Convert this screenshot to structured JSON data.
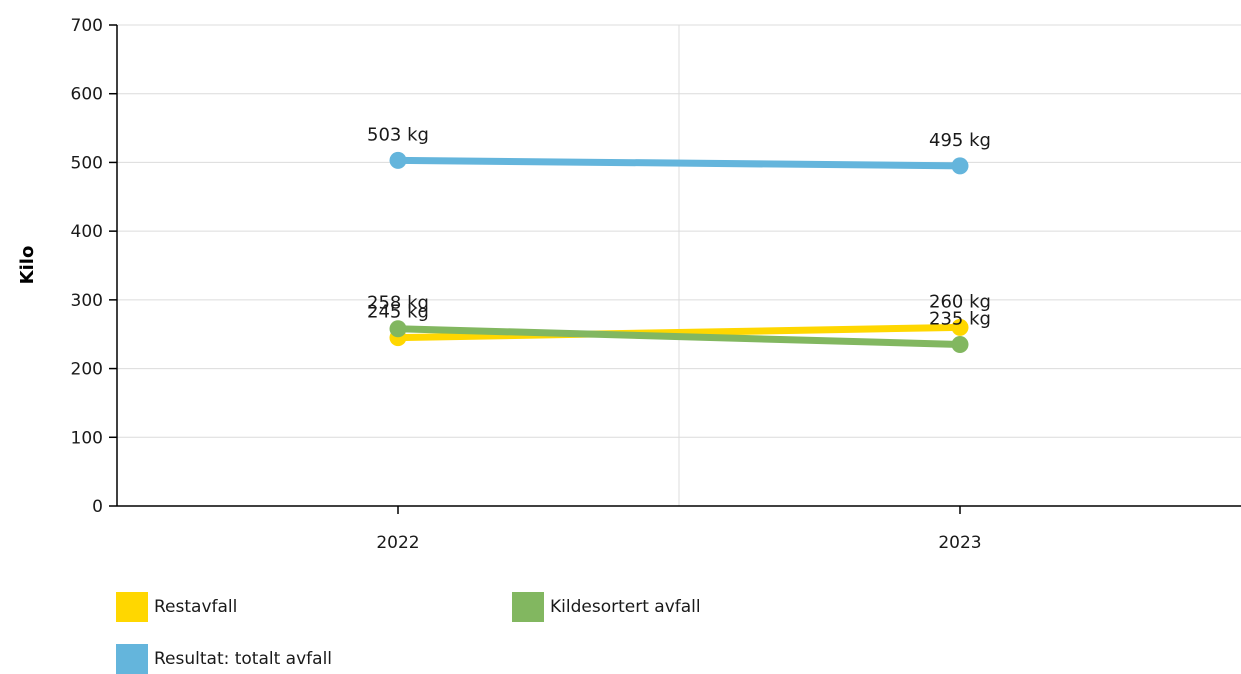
{
  "chart_data": {
    "type": "line",
    "title": "",
    "xlabel": "",
    "ylabel": "Kilo",
    "categories": [
      "2022",
      "2023"
    ],
    "ylim": [
      0,
      700
    ],
    "yticks": [
      0,
      100,
      200,
      300,
      400,
      500,
      600,
      700
    ],
    "grid": true,
    "legend_position": "bottom-left",
    "series": [
      {
        "name": "Restavfall",
        "values": [
          245,
          260
        ],
        "labels": [
          "245 kg",
          "260 kg"
        ],
        "color": "#ffd700"
      },
      {
        "name": "Kildesortert avfall",
        "values": [
          258,
          235
        ],
        "labels": [
          "258 kg",
          "235 kg"
        ],
        "color": "#82b760"
      },
      {
        "name": "Resultat: totalt avfall",
        "values": [
          503,
          495
        ],
        "labels": [
          "503 kg",
          "495 kg"
        ],
        "color": "#64b5dc"
      }
    ]
  }
}
